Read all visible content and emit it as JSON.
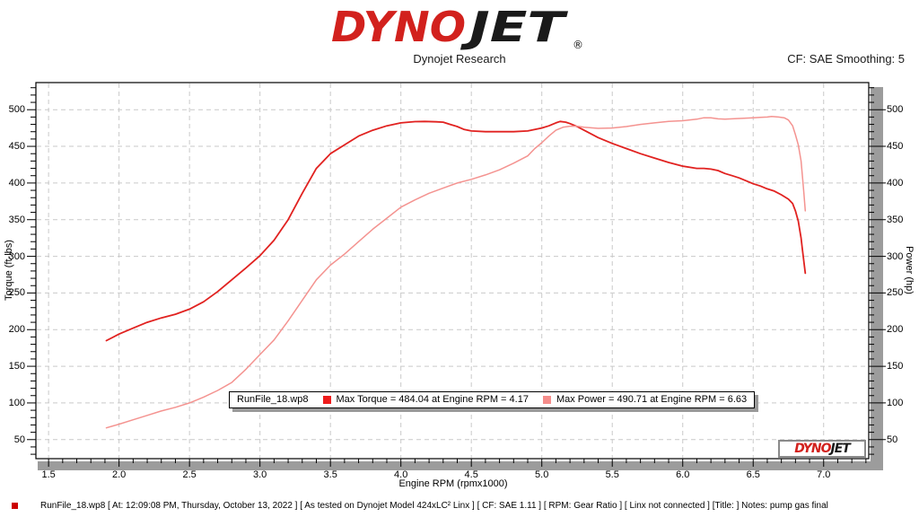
{
  "header": {
    "logo": {
      "part1": "DYNO",
      "part2": "JET",
      "registered": "®",
      "red": "#d2211d",
      "black": "#1a1a1a"
    },
    "subtitle": "Dynojet Research",
    "smoothing_label": "CF: SAE Smoothing: 5"
  },
  "chart_data": {
    "type": "line",
    "title": "",
    "xlabel": "Engine RPM (rpmx1000)",
    "ylabel_left": "Torque (ft-lbs)",
    "ylabel_right": "Power (hp)",
    "xlim": [
      1.41,
      7.32
    ],
    "ylim": [
      24,
      537
    ],
    "x_ticks": [
      1.5,
      2.0,
      2.5,
      3.0,
      3.5,
      4.0,
      4.5,
      5.0,
      5.5,
      6.0,
      6.5,
      7.0
    ],
    "y_ticks": [
      50,
      100,
      150,
      200,
      250,
      300,
      350,
      400,
      450,
      500
    ],
    "x_minor_step": 0.1,
    "y_minor_step": 10,
    "grid": true,
    "grid_color": "#c9c9c9",
    "legend_position": "bottom-center-inside",
    "series": [
      {
        "name": "Torque",
        "units": "ft-lbs",
        "color": "#e12220",
        "max": {
          "value": 484.04,
          "rpm": 4.17
        },
        "points": [
          [
            1.91,
            185
          ],
          [
            2.0,
            194
          ],
          [
            2.1,
            202
          ],
          [
            2.2,
            210
          ],
          [
            2.3,
            216
          ],
          [
            2.4,
            221
          ],
          [
            2.5,
            228
          ],
          [
            2.6,
            238
          ],
          [
            2.7,
            252
          ],
          [
            2.8,
            268
          ],
          [
            2.9,
            284
          ],
          [
            3.0,
            301
          ],
          [
            3.1,
            322
          ],
          [
            3.2,
            350
          ],
          [
            3.3,
            386
          ],
          [
            3.4,
            420
          ],
          [
            3.5,
            440
          ],
          [
            3.6,
            452
          ],
          [
            3.7,
            464
          ],
          [
            3.8,
            472
          ],
          [
            3.9,
            478
          ],
          [
            4.0,
            482
          ],
          [
            4.1,
            483.7
          ],
          [
            4.17,
            484
          ],
          [
            4.25,
            483.5
          ],
          [
            4.3,
            483
          ],
          [
            4.35,
            480
          ],
          [
            4.4,
            477
          ],
          [
            4.45,
            473
          ],
          [
            4.5,
            471
          ],
          [
            4.6,
            470
          ],
          [
            4.7,
            470
          ],
          [
            4.8,
            470
          ],
          [
            4.9,
            471
          ],
          [
            5.0,
            475
          ],
          [
            5.05,
            478
          ],
          [
            5.1,
            482
          ],
          [
            5.13,
            484
          ],
          [
            5.17,
            483
          ],
          [
            5.2,
            481
          ],
          [
            5.25,
            477
          ],
          [
            5.3,
            472
          ],
          [
            5.4,
            462
          ],
          [
            5.5,
            454
          ],
          [
            5.6,
            447
          ],
          [
            5.7,
            440
          ],
          [
            5.8,
            434
          ],
          [
            5.9,
            428
          ],
          [
            6.0,
            423
          ],
          [
            6.1,
            420
          ],
          [
            6.15,
            420
          ],
          [
            6.2,
            419
          ],
          [
            6.25,
            417
          ],
          [
            6.3,
            413
          ],
          [
            6.35,
            410
          ],
          [
            6.4,
            407
          ],
          [
            6.45,
            403
          ],
          [
            6.5,
            399
          ],
          [
            6.55,
            396
          ],
          [
            6.6,
            392
          ],
          [
            6.65,
            389
          ],
          [
            6.7,
            384
          ],
          [
            6.75,
            378
          ],
          [
            6.78,
            372
          ],
          [
            6.8,
            362
          ],
          [
            6.82,
            348
          ],
          [
            6.84,
            325
          ],
          [
            6.85,
            308
          ],
          [
            6.86,
            292
          ],
          [
            6.87,
            277
          ]
        ]
      },
      {
        "name": "Power",
        "units": "hp",
        "color": "#f49390",
        "max": {
          "value": 490.71,
          "rpm": 6.63
        },
        "points": [
          [
            1.91,
            66
          ],
          [
            2.0,
            71
          ],
          [
            2.1,
            77
          ],
          [
            2.2,
            83
          ],
          [
            2.3,
            89
          ],
          [
            2.4,
            94
          ],
          [
            2.5,
            100
          ],
          [
            2.6,
            108
          ],
          [
            2.7,
            117
          ],
          [
            2.8,
            128
          ],
          [
            2.9,
            146
          ],
          [
            3.0,
            166
          ],
          [
            3.1,
            186
          ],
          [
            3.2,
            212
          ],
          [
            3.3,
            240
          ],
          [
            3.4,
            268
          ],
          [
            3.5,
            288
          ],
          [
            3.6,
            303
          ],
          [
            3.7,
            320
          ],
          [
            3.8,
            337
          ],
          [
            3.9,
            352
          ],
          [
            4.0,
            367
          ],
          [
            4.1,
            377
          ],
          [
            4.2,
            386
          ],
          [
            4.3,
            393
          ],
          [
            4.4,
            400
          ],
          [
            4.5,
            405
          ],
          [
            4.6,
            411
          ],
          [
            4.7,
            418
          ],
          [
            4.8,
            427
          ],
          [
            4.9,
            437
          ],
          [
            4.95,
            447
          ],
          [
            5.0,
            455
          ],
          [
            5.05,
            464
          ],
          [
            5.1,
            472
          ],
          [
            5.15,
            476
          ],
          [
            5.2,
            477.5
          ],
          [
            5.25,
            477.5
          ],
          [
            5.3,
            476
          ],
          [
            5.4,
            474.5
          ],
          [
            5.5,
            475
          ],
          [
            5.6,
            477
          ],
          [
            5.7,
            480
          ],
          [
            5.8,
            482
          ],
          [
            5.9,
            484
          ],
          [
            6.0,
            485
          ],
          [
            6.1,
            487
          ],
          [
            6.15,
            489
          ],
          [
            6.2,
            489
          ],
          [
            6.25,
            487.5
          ],
          [
            6.3,
            487
          ],
          [
            6.4,
            488
          ],
          [
            6.5,
            489
          ],
          [
            6.55,
            489.5
          ],
          [
            6.6,
            490
          ],
          [
            6.63,
            490.7
          ],
          [
            6.68,
            490
          ],
          [
            6.72,
            489
          ],
          [
            6.75,
            486
          ],
          [
            6.78,
            478
          ],
          [
            6.8,
            466
          ],
          [
            6.82,
            452
          ],
          [
            6.84,
            430
          ],
          [
            6.85,
            408
          ],
          [
            6.86,
            385
          ],
          [
            6.87,
            362
          ]
        ]
      }
    ],
    "legend": {
      "file": "RunFile_18.wp8",
      "entries": [
        {
          "label": "Max Torque = 484.04 at Engine RPM = 4.17",
          "color": "#ee1c1c"
        },
        {
          "label": "Max Power = 490.71 at Engine RPM = 6.63",
          "color": "#f58d8b"
        }
      ]
    },
    "watermark": {
      "part1": "DYNO",
      "part2": "JET"
    }
  },
  "statusbar": {
    "bullet_color": "#cc0000",
    "text": "RunFile_18.wp8 [ At: 12:09:08 PM, Thursday, October 13, 2022 ] [ As tested on Dynojet Model 424xLC² Linx ] [ CF: SAE 1.11 ] [ RPM: Gear Ratio ] [ Linx not connected ] [Title: ]  Notes: pump gas final"
  }
}
